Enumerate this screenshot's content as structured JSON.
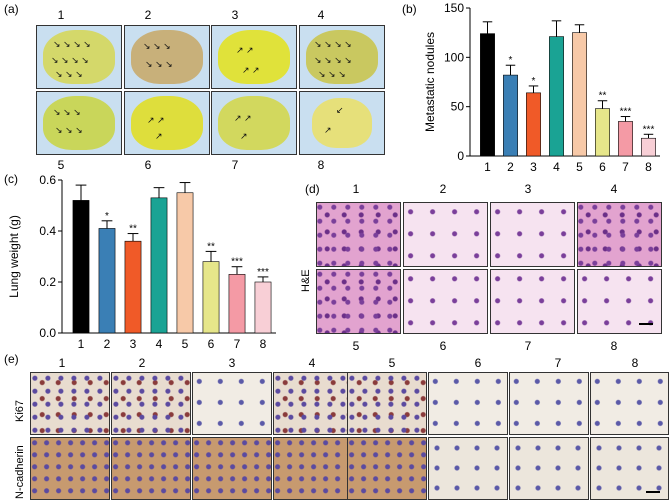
{
  "panels": {
    "a": {
      "label": "(a)",
      "numbers_top": [
        "1",
        "2",
        "3",
        "4"
      ],
      "numbers_bottom": [
        "5",
        "6",
        "7",
        "8"
      ]
    },
    "b": {
      "label": "(b)"
    },
    "c": {
      "label": "(c)"
    },
    "d": {
      "label": "(d)",
      "row_label": "H&E",
      "numbers_top": [
        "1",
        "2",
        "3",
        "4"
      ],
      "numbers_bottom": [
        "5",
        "6",
        "7",
        "8"
      ]
    },
    "e": {
      "label": "(e)",
      "numbers": [
        "1",
        "2",
        "3",
        "4",
        "5",
        "6",
        "7",
        "8"
      ],
      "row_labels": [
        "Ki67",
        "N-cadherin"
      ]
    }
  },
  "chart_data": [
    {
      "id": "b",
      "type": "bar",
      "categories": [
        "1",
        "2",
        "3",
        "4",
        "5",
        "6",
        "7",
        "8"
      ],
      "values": [
        124,
        82,
        64,
        121,
        125,
        48,
        35,
        18
      ],
      "errors": [
        12,
        10,
        7,
        16,
        8,
        8,
        5,
        4
      ],
      "significance": [
        "",
        "*",
        "*",
        "",
        "",
        "**",
        "***",
        "***"
      ],
      "colors": [
        "#000000",
        "#3a7fb5",
        "#f05a28",
        "#1aa394",
        "#f7c9a8",
        "#e6e68a",
        "#f49aa5",
        "#f8cfd6"
      ],
      "ylabel": "Metastatic nodules",
      "ylim": [
        0,
        150
      ],
      "yticks": [
        0,
        50,
        100,
        150
      ]
    },
    {
      "id": "c",
      "type": "bar",
      "categories": [
        "1",
        "2",
        "3",
        "4",
        "5",
        "6",
        "7",
        "8"
      ],
      "values": [
        0.52,
        0.41,
        0.36,
        0.53,
        0.55,
        0.28,
        0.23,
        0.2
      ],
      "errors": [
        0.06,
        0.03,
        0.03,
        0.04,
        0.04,
        0.04,
        0.03,
        0.02
      ],
      "significance": [
        "",
        "*",
        "**",
        "",
        "",
        "**",
        "***",
        "***"
      ],
      "colors": [
        "#000000",
        "#3a7fb5",
        "#f05a28",
        "#1aa394",
        "#f7c9a8",
        "#e6e68a",
        "#f49aa5",
        "#f8cfd6"
      ],
      "ylabel": "Lung weight (g)",
      "ylim": [
        0,
        0.6
      ],
      "yticks": [
        0.0,
        0.2,
        0.4,
        0.6
      ]
    }
  ]
}
